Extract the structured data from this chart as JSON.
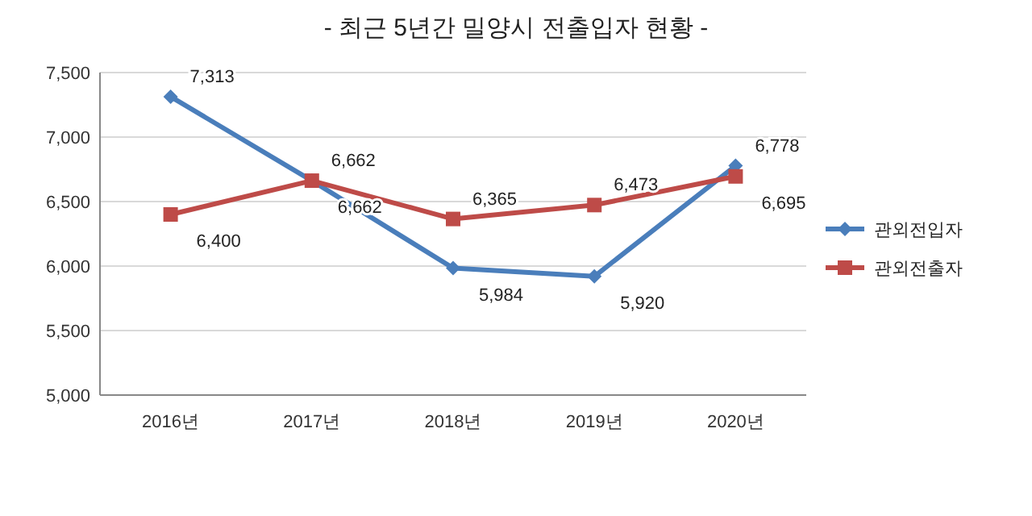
{
  "chart_data": {
    "type": "line",
    "title": "- 최근 5년간 밀양시 전출입자 현황 -",
    "categories": [
      "2016년",
      "2017년",
      "2018년",
      "2019년",
      "2020년"
    ],
    "series": [
      {
        "name": "관외전입자",
        "color": "#4a7ebb",
        "marker": "diamond",
        "values": [
          7313,
          6662,
          5984,
          5920,
          6778
        ],
        "value_labels": [
          "7,313",
          "6,662",
          "5,984",
          "5,920",
          "6,778"
        ]
      },
      {
        "name": "관외전출자",
        "color": "#be4b48",
        "marker": "square",
        "values": [
          6400,
          6662,
          6365,
          6473,
          6695
        ],
        "value_labels": [
          "6,400",
          "6,662",
          "6,365",
          "6,473",
          "6,695"
        ]
      }
    ],
    "ylim": [
      5000,
      7500
    ],
    "yticks": [
      {
        "value": 5000,
        "label": "5,000"
      },
      {
        "value": 5500,
        "label": "5,500"
      },
      {
        "value": 6000,
        "label": "6,000"
      },
      {
        "value": 6500,
        "label": "6,500"
      },
      {
        "value": 7000,
        "label": "7,000"
      },
      {
        "value": 7500,
        "label": "7,500"
      }
    ],
    "grid": "y",
    "legend": "right",
    "line_style": "solid"
  }
}
